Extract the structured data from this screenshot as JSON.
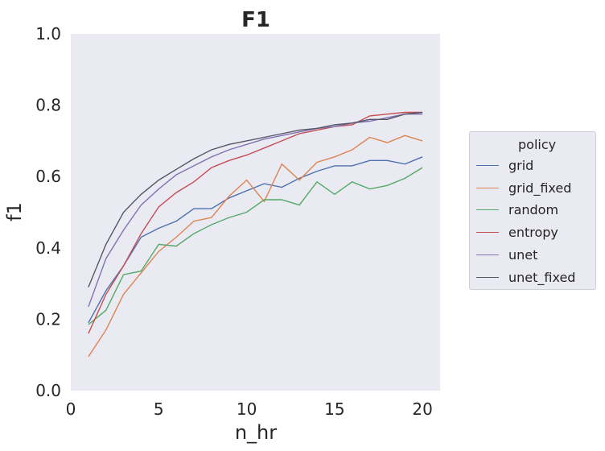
{
  "chart_data": {
    "type": "line",
    "title": "F1",
    "xlabel": "n_hr",
    "ylabel": "f1",
    "xlim": [
      0,
      21
    ],
    "ylim": [
      0,
      1.0
    ],
    "xticks": [
      "0",
      "5",
      "10",
      "15",
      "20"
    ],
    "yticks": [
      "0.0",
      "0.2",
      "0.4",
      "0.6",
      "0.8",
      "1.0"
    ],
    "grid": false,
    "legend": {
      "title": "policy",
      "placement": "right"
    },
    "x": [
      1,
      2,
      3,
      4,
      5,
      6,
      7,
      8,
      9,
      10,
      11,
      12,
      13,
      14,
      15,
      16,
      17,
      18,
      19,
      20
    ],
    "series": [
      {
        "name": "grid",
        "color": "#4c72b0",
        "values": [
          0.19,
          0.28,
          0.35,
          0.43,
          0.455,
          0.475,
          0.51,
          0.51,
          0.54,
          0.56,
          0.58,
          0.57,
          0.595,
          0.615,
          0.63,
          0.63,
          0.645,
          0.645,
          0.635,
          0.655
        ]
      },
      {
        "name": "grid_fixed",
        "color": "#dd8452",
        "values": [
          0.095,
          0.17,
          0.27,
          0.33,
          0.39,
          0.43,
          0.475,
          0.485,
          0.545,
          0.59,
          0.53,
          0.635,
          0.59,
          0.64,
          0.655,
          0.675,
          0.71,
          0.695,
          0.715,
          0.7
        ]
      },
      {
        "name": "random",
        "color": "#55a868",
        "values": [
          0.185,
          0.225,
          0.325,
          0.335,
          0.41,
          0.405,
          0.44,
          0.465,
          0.485,
          0.5,
          0.535,
          0.535,
          0.52,
          0.585,
          0.55,
          0.585,
          0.565,
          0.575,
          0.595,
          0.625
        ]
      },
      {
        "name": "entropy",
        "color": "#c44e52",
        "values": [
          0.16,
          0.27,
          0.35,
          0.44,
          0.515,
          0.555,
          0.585,
          0.625,
          0.645,
          0.66,
          0.68,
          0.7,
          0.72,
          0.73,
          0.74,
          0.745,
          0.77,
          0.775,
          0.78,
          0.78
        ]
      },
      {
        "name": "unet",
        "color": "#8172b3",
        "values": [
          0.235,
          0.37,
          0.45,
          0.52,
          0.565,
          0.605,
          0.63,
          0.655,
          0.675,
          0.69,
          0.705,
          0.715,
          0.725,
          0.735,
          0.74,
          0.75,
          0.755,
          0.765,
          0.775,
          0.775
        ]
      },
      {
        "name": "unet_fixed",
        "color": "#555566",
        "values": [
          0.29,
          0.41,
          0.5,
          0.55,
          0.59,
          0.62,
          0.65,
          0.675,
          0.69,
          0.7,
          0.71,
          0.72,
          0.73,
          0.735,
          0.745,
          0.75,
          0.76,
          0.76,
          0.775,
          0.78
        ]
      }
    ]
  },
  "colors": {
    "plot_bg": "#eaeaf2",
    "text": "#262626"
  }
}
